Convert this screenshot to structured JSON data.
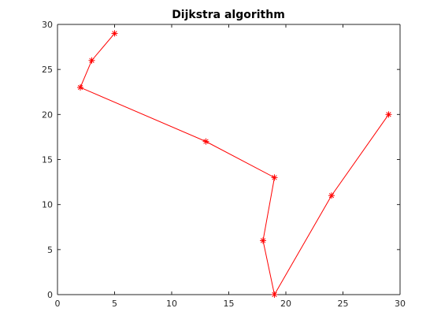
{
  "chart_data": {
    "type": "line",
    "title": "Dijkstra algorithm",
    "xlabel": "",
    "ylabel": "",
    "xlim": [
      0,
      30
    ],
    "ylim": [
      0,
      30
    ],
    "xticks": [
      0,
      5,
      10,
      15,
      20,
      25,
      30
    ],
    "yticks": [
      0,
      5,
      10,
      15,
      20,
      25,
      30
    ],
    "grid": false,
    "legend": "none",
    "marker": "asterisk",
    "series": [
      {
        "color": "#ff0000",
        "points": [
          {
            "x": 5,
            "y": 29
          },
          {
            "x": 3,
            "y": 26
          },
          {
            "x": 2,
            "y": 23
          },
          {
            "x": 13,
            "y": 17
          },
          {
            "x": 19,
            "y": 13
          },
          {
            "x": 18,
            "y": 6
          },
          {
            "x": 19,
            "y": 0
          },
          {
            "x": 24,
            "y": 11
          },
          {
            "x": 29,
            "y": 20
          }
        ]
      }
    ]
  }
}
